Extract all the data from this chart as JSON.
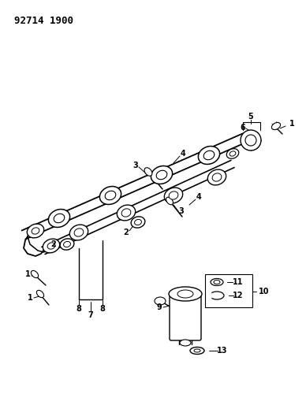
{
  "title": "92714 1900",
  "background_color": "#ffffff",
  "text_color": "#000000",
  "line_color": "#000000",
  "fig_width": 3.88,
  "fig_height": 5.33,
  "dpi": 100
}
